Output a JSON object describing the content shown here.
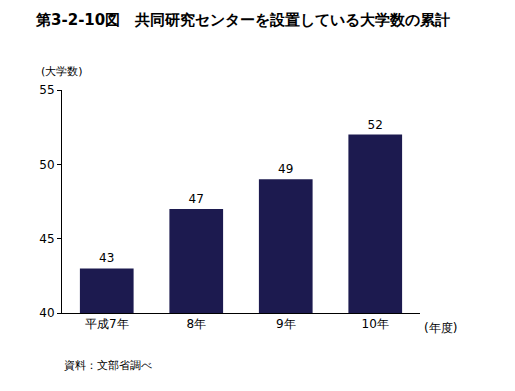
{
  "chart_data": {
    "type": "bar",
    "title": "第3-2-10図　共同研究センターを設置している大学数の累計",
    "y_label": "(大学数)",
    "x_label": "(年度)",
    "note": "資料：文部省調べ",
    "categories": [
      "平成7年",
      "8年",
      "9年",
      "10年"
    ],
    "values": [
      43,
      47,
      49,
      52
    ],
    "color": "#1c1a4f",
    "ylim": [
      40,
      55
    ],
    "yticks": [
      40,
      45,
      50,
      55
    ],
    "grid": false,
    "data_labels": true
  }
}
